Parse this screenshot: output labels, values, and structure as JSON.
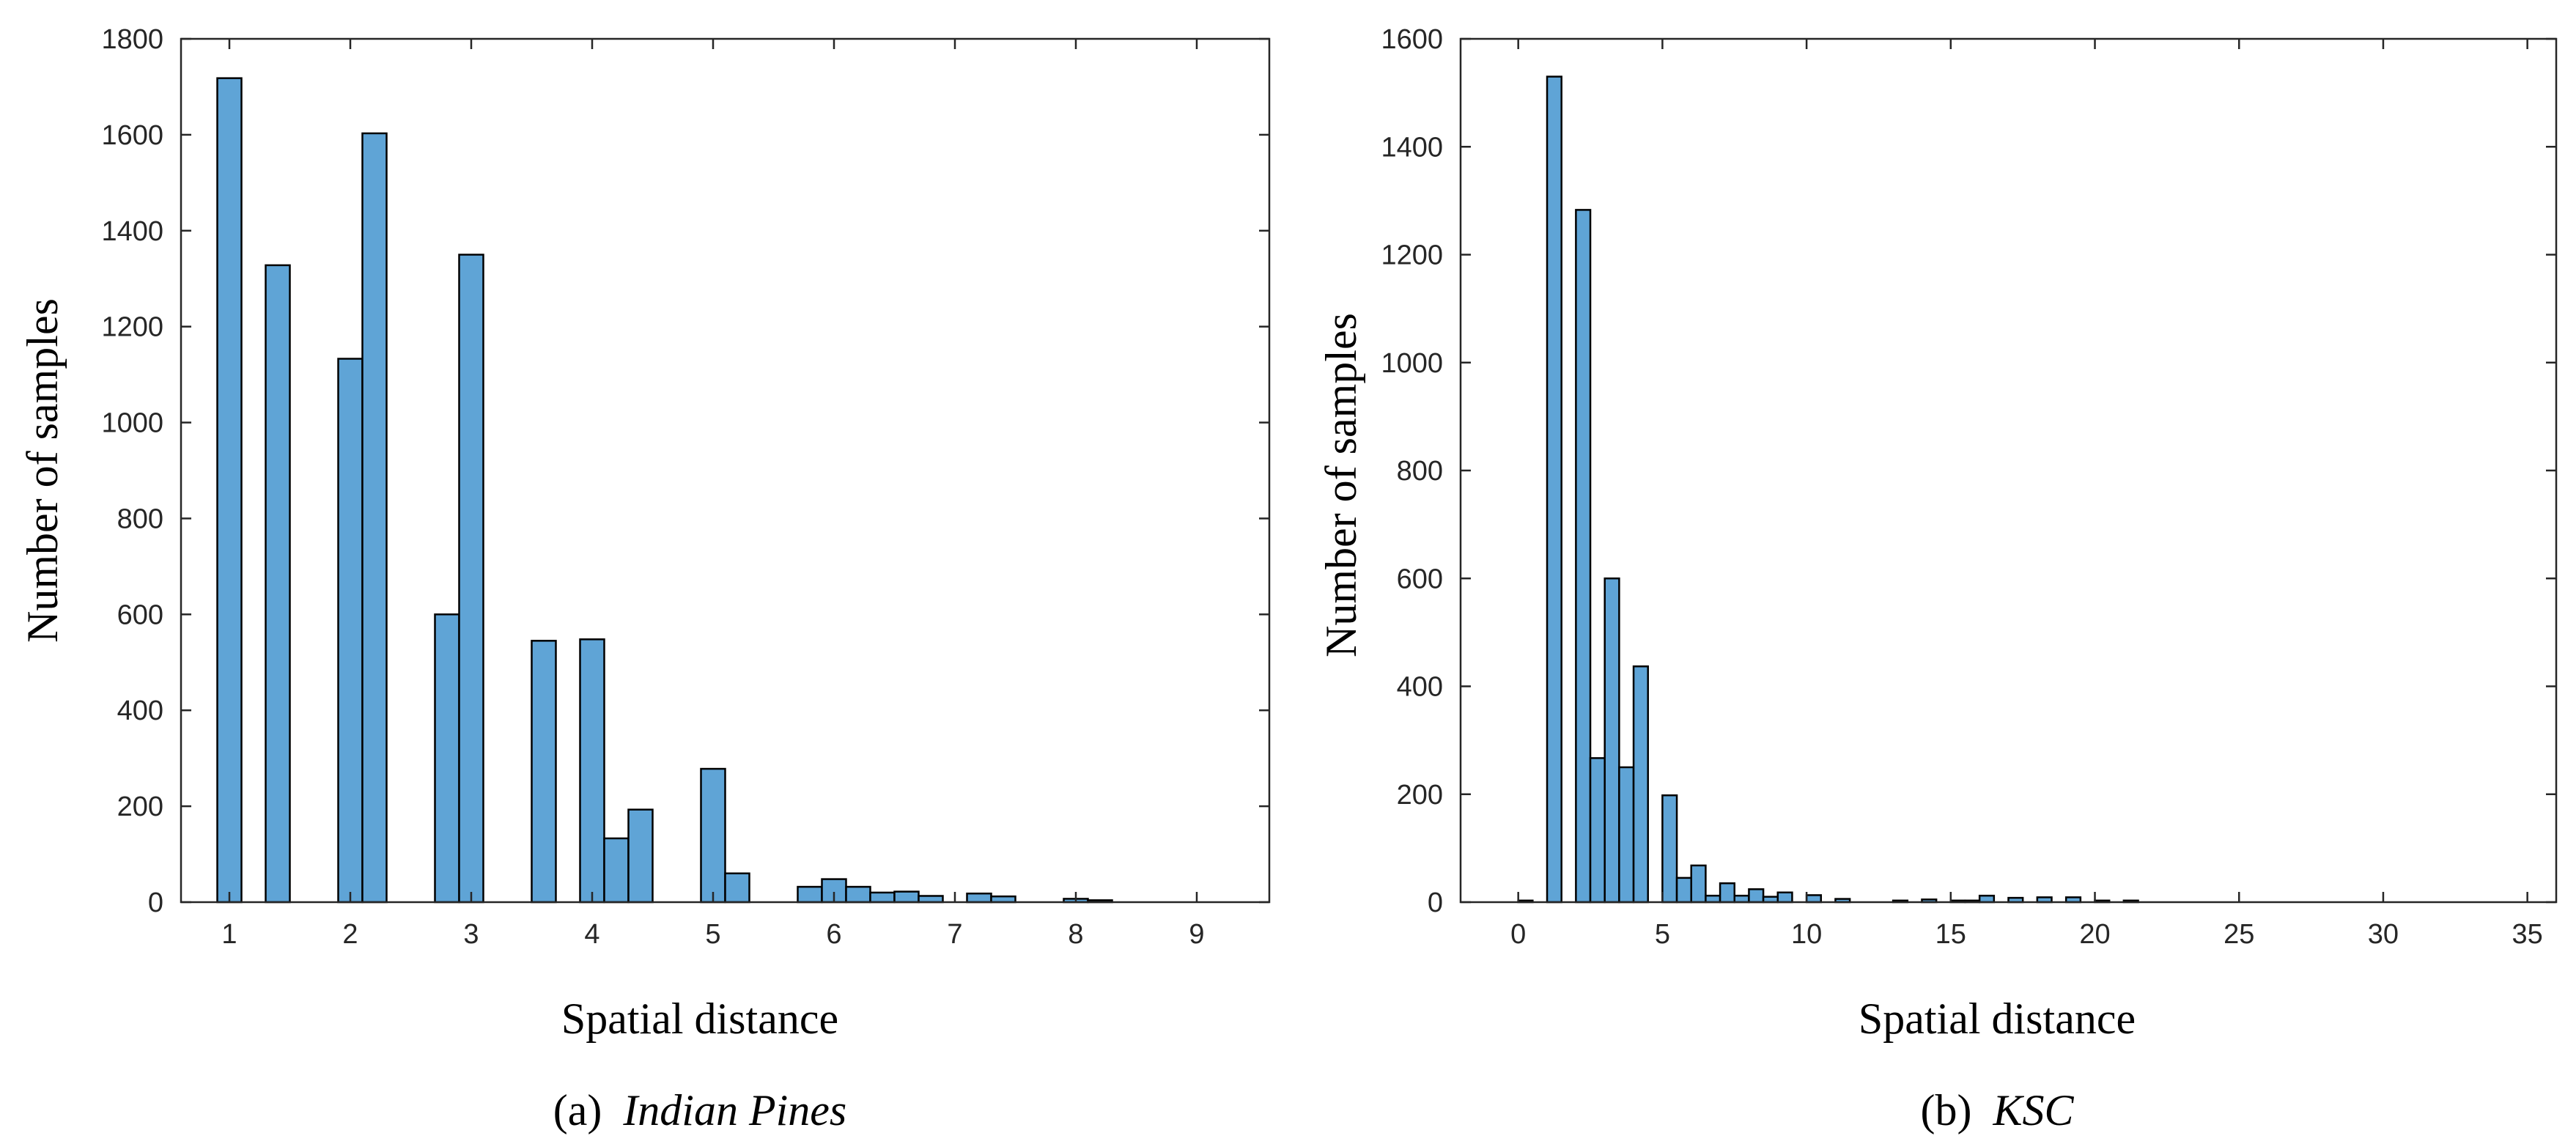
{
  "colors": {
    "bar_fill": "#5fa4d6",
    "bar_edge": "#000000",
    "axis": "#262626"
  },
  "chart_data": [
    {
      "type": "bar",
      "panel_label": "(a)",
      "dataset_name": "Indian Pines",
      "xlabel": "Spatial distance",
      "ylabel": "Number of samples",
      "xlim": [
        0.6,
        9.6
      ],
      "ylim": [
        0,
        1800
      ],
      "xticks": [
        1,
        2,
        3,
        4,
        5,
        6,
        7,
        8,
        9
      ],
      "yticks": [
        0,
        200,
        400,
        600,
        800,
        1000,
        1200,
        1400,
        1600,
        1800
      ],
      "bin_width": 0.2,
      "bins": [
        {
          "x": 1.0,
          "value": 1718
        },
        {
          "x": 1.4,
          "value": 1328
        },
        {
          "x": 2.0,
          "value": 1133
        },
        {
          "x": 2.2,
          "value": 1603
        },
        {
          "x": 2.8,
          "value": 600
        },
        {
          "x": 3.0,
          "value": 1350
        },
        {
          "x": 3.6,
          "value": 545
        },
        {
          "x": 4.0,
          "value": 548
        },
        {
          "x": 4.2,
          "value": 133
        },
        {
          "x": 4.4,
          "value": 193
        },
        {
          "x": 5.0,
          "value": 278
        },
        {
          "x": 5.2,
          "value": 60
        },
        {
          "x": 5.8,
          "value": 32
        },
        {
          "x": 6.0,
          "value": 48
        },
        {
          "x": 6.2,
          "value": 32
        },
        {
          "x": 6.4,
          "value": 20
        },
        {
          "x": 6.6,
          "value": 22
        },
        {
          "x": 6.8,
          "value": 13
        },
        {
          "x": 7.2,
          "value": 18
        },
        {
          "x": 7.4,
          "value": 12
        },
        {
          "x": 8.0,
          "value": 7
        },
        {
          "x": 8.2,
          "value": 4
        }
      ]
    },
    {
      "type": "bar",
      "panel_label": "(b)",
      "dataset_name": "KSC",
      "xlabel": "Spatial distance",
      "ylabel": "Number of samples",
      "xlim": [
        -2,
        36
      ],
      "ylim": [
        0,
        1600
      ],
      "xticks": [
        0,
        5,
        10,
        15,
        20,
        25,
        30,
        35
      ],
      "yticks": [
        0,
        200,
        400,
        600,
        800,
        1000,
        1200,
        1400,
        1600
      ],
      "bin_width": 0.5,
      "bins": [
        {
          "x": 0.25,
          "value": 3
        },
        {
          "x": 1.25,
          "value": 1530
        },
        {
          "x": 2.25,
          "value": 1283
        },
        {
          "x": 2.75,
          "value": 267
        },
        {
          "x": 3.25,
          "value": 600
        },
        {
          "x": 3.75,
          "value": 250
        },
        {
          "x": 4.25,
          "value": 437
        },
        {
          "x": 5.25,
          "value": 198
        },
        {
          "x": 5.75,
          "value": 45
        },
        {
          "x": 6.25,
          "value": 68
        },
        {
          "x": 6.75,
          "value": 12
        },
        {
          "x": 7.25,
          "value": 35
        },
        {
          "x": 7.75,
          "value": 12
        },
        {
          "x": 8.25,
          "value": 24
        },
        {
          "x": 8.75,
          "value": 10
        },
        {
          "x": 9.25,
          "value": 18
        },
        {
          "x": 10.25,
          "value": 13
        },
        {
          "x": 11.25,
          "value": 6
        },
        {
          "x": 13.25,
          "value": 3
        },
        {
          "x": 14.25,
          "value": 5
        },
        {
          "x": 15.25,
          "value": 3
        },
        {
          "x": 15.75,
          "value": 3
        },
        {
          "x": 16.25,
          "value": 12
        },
        {
          "x": 17.25,
          "value": 8
        },
        {
          "x": 18.25,
          "value": 9
        },
        {
          "x": 19.25,
          "value": 9
        },
        {
          "x": 20.25,
          "value": 3
        },
        {
          "x": 21.25,
          "value": 3
        }
      ]
    }
  ]
}
